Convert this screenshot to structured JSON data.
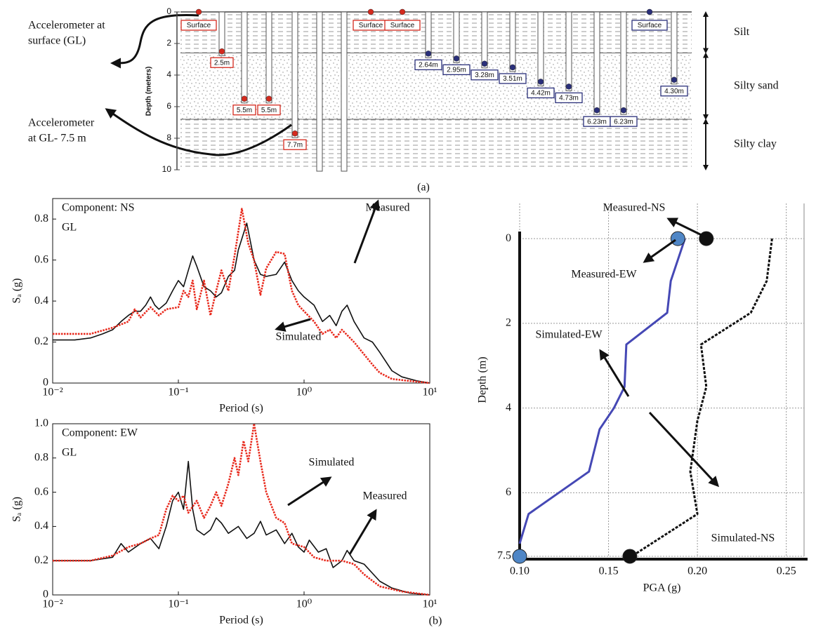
{
  "diagram": {
    "caption": "(a)",
    "depth_axis": {
      "label": "Depth (meters)",
      "lim": [
        0,
        10
      ],
      "ticks": [
        0,
        2,
        4,
        6,
        8,
        10
      ]
    },
    "layers": [
      {
        "name": "Silt",
        "top": 0,
        "bottom": 2.6
      },
      {
        "name": "Silty sand",
        "top": 2.6,
        "bottom": 6.8
      },
      {
        "name": "Silty clay",
        "top": 6.8,
        "bottom": 10
      }
    ],
    "sensors": [
      {
        "label": "Surface",
        "depth": 0,
        "color": "#d42a1e"
      },
      {
        "label": "2.5m",
        "depth": 2.5,
        "color": "#d42a1e"
      },
      {
        "label": "5.5m",
        "depth": 5.5,
        "color": "#d42a1e"
      },
      {
        "label": "5.5m",
        "depth": 5.5,
        "color": "#d42a1e"
      },
      {
        "label": "7.7m",
        "depth": 7.7,
        "color": "#d42a1e"
      },
      {
        "label": "Surface",
        "depth": 0,
        "color": "#d42a1e"
      },
      {
        "label": "Surface",
        "depth": 0,
        "color": "#d42a1e"
      },
      {
        "label": "2.64m",
        "depth": 2.64,
        "color": "#2a2f7a"
      },
      {
        "label": "2.95m",
        "depth": 2.95,
        "color": "#2a2f7a"
      },
      {
        "label": "3.28m",
        "depth": 3.28,
        "color": "#2a2f7a"
      },
      {
        "label": "3.51m",
        "depth": 3.51,
        "color": "#2a2f7a"
      },
      {
        "label": "4.42m",
        "depth": 4.42,
        "color": "#2a2f7a"
      },
      {
        "label": "4.73m",
        "depth": 4.73,
        "color": "#2a2f7a"
      },
      {
        "label": "6.23m",
        "depth": 6.23,
        "color": "#2a2f7a"
      },
      {
        "label": "6.23m",
        "depth": 6.23,
        "color": "#2a2f7a"
      },
      {
        "label": "Surface",
        "depth": 0,
        "color": "#2a2f7a"
      },
      {
        "label": "4.30m",
        "depth": 4.3,
        "color": "#2a2f7a"
      }
    ],
    "annotations": [
      {
        "lines": [
          "Accelerometer at",
          "surface (GL)"
        ]
      },
      {
        "lines": [
          "Accelerometer",
          "at GL- 7.5 m"
        ]
      }
    ]
  },
  "caption": "(b)",
  "chart_data": [
    {
      "type": "line",
      "log_x": true,
      "xlim": [
        0.01,
        10
      ],
      "ylim": [
        0,
        0.9
      ],
      "xticks": [
        {
          "value": 0.01,
          "label": "10⁻²"
        },
        {
          "value": 0.1,
          "label": "10⁻¹"
        },
        {
          "value": 1,
          "label": "10⁰"
        },
        {
          "value": 10,
          "label": "10¹"
        }
      ],
      "yticks": [
        0,
        0.2,
        0.4,
        0.6,
        0.8
      ],
      "xlabel": "Period (s)",
      "ylabel": "Sₐ (g)",
      "annotations": [
        "Component: NS",
        "GL"
      ],
      "series": [
        {
          "name": "Measured",
          "color": "#111111",
          "x": [
            0.01,
            0.015,
            0.02,
            0.025,
            0.03,
            0.035,
            0.04,
            0.045,
            0.05,
            0.055,
            0.06,
            0.065,
            0.07,
            0.08,
            0.09,
            0.1,
            0.11,
            0.12,
            0.13,
            0.14,
            0.16,
            0.18,
            0.2,
            0.22,
            0.25,
            0.28,
            0.3,
            0.35,
            0.4,
            0.45,
            0.5,
            0.6,
            0.7,
            0.8,
            0.9,
            1,
            1.2,
            1.4,
            1.6,
            1.8,
            2,
            2.2,
            2.5,
            3,
            3.5,
            4,
            5,
            6,
            8,
            10
          ],
          "values": [
            0.21,
            0.21,
            0.22,
            0.24,
            0.26,
            0.3,
            0.33,
            0.35,
            0.35,
            0.38,
            0.42,
            0.38,
            0.36,
            0.39,
            0.45,
            0.5,
            0.47,
            0.55,
            0.62,
            0.57,
            0.47,
            0.45,
            0.42,
            0.44,
            0.52,
            0.55,
            0.65,
            0.78,
            0.6,
            0.53,
            0.52,
            0.53,
            0.59,
            0.5,
            0.45,
            0.42,
            0.38,
            0.3,
            0.33,
            0.28,
            0.35,
            0.38,
            0.3,
            0.22,
            0.2,
            0.15,
            0.06,
            0.03,
            0.01,
            0
          ]
        },
        {
          "name": "Simulated",
          "color": "#e8291c",
          "dash": "dotted",
          "x": [
            0.01,
            0.02,
            0.03,
            0.04,
            0.045,
            0.05,
            0.06,
            0.07,
            0.08,
            0.1,
            0.11,
            0.12,
            0.13,
            0.14,
            0.16,
            0.18,
            0.2,
            0.22,
            0.25,
            0.28,
            0.32,
            0.36,
            0.4,
            0.45,
            0.5,
            0.6,
            0.7,
            0.8,
            0.9,
            1,
            1.2,
            1.4,
            1.6,
            1.8,
            2,
            2.5,
            3,
            3.5,
            4,
            5,
            7,
            10
          ],
          "values": [
            0.24,
            0.24,
            0.27,
            0.3,
            0.36,
            0.32,
            0.37,
            0.33,
            0.36,
            0.37,
            0.45,
            0.42,
            0.5,
            0.36,
            0.5,
            0.33,
            0.45,
            0.55,
            0.45,
            0.62,
            0.85,
            0.68,
            0.6,
            0.43,
            0.56,
            0.64,
            0.63,
            0.45,
            0.38,
            0.35,
            0.3,
            0.24,
            0.26,
            0.22,
            0.26,
            0.2,
            0.14,
            0.09,
            0.05,
            0.02,
            0.01,
            0
          ]
        }
      ]
    },
    {
      "type": "line",
      "log_x": true,
      "xlim": [
        0.01,
        10
      ],
      "ylim": [
        0,
        1
      ],
      "xticks": [
        {
          "value": 0.01,
          "label": "10⁻²"
        },
        {
          "value": 0.1,
          "label": "10⁻¹"
        },
        {
          "value": 1,
          "label": "10⁰"
        },
        {
          "value": 10,
          "label": "10¹"
        }
      ],
      "yticks": [
        0,
        0.2,
        0.4,
        0.6,
        0.8,
        {
          "value": 1,
          "label": "1.0"
        }
      ],
      "xlabel": "Period (s)",
      "ylabel": "Sₐ (g)",
      "annotations": [
        "Component: EW",
        "GL"
      ],
      "series": [
        {
          "name": "Measured",
          "color": "#111111",
          "x": [
            0.01,
            0.02,
            0.03,
            0.035,
            0.04,
            0.05,
            0.06,
            0.07,
            0.08,
            0.09,
            0.1,
            0.11,
            0.12,
            0.13,
            0.14,
            0.16,
            0.18,
            0.2,
            0.22,
            0.25,
            0.3,
            0.35,
            0.4,
            0.45,
            0.5,
            0.6,
            0.7,
            0.8,
            0.9,
            1,
            1.1,
            1.3,
            1.5,
            1.7,
            2,
            2.2,
            2.5,
            3,
            4,
            5,
            7,
            10
          ],
          "values": [
            0.2,
            0.2,
            0.22,
            0.3,
            0.25,
            0.3,
            0.33,
            0.27,
            0.4,
            0.55,
            0.6,
            0.5,
            0.78,
            0.5,
            0.38,
            0.35,
            0.38,
            0.45,
            0.42,
            0.36,
            0.4,
            0.33,
            0.36,
            0.43,
            0.35,
            0.38,
            0.3,
            0.36,
            0.28,
            0.25,
            0.32,
            0.25,
            0.27,
            0.16,
            0.2,
            0.26,
            0.2,
            0.18,
            0.08,
            0.04,
            0.01,
            0
          ]
        },
        {
          "name": "Simulated",
          "color": "#e8291c",
          "dash": "dotted",
          "x": [
            0.01,
            0.02,
            0.03,
            0.04,
            0.05,
            0.06,
            0.07,
            0.08,
            0.09,
            0.1,
            0.11,
            0.12,
            0.14,
            0.16,
            0.18,
            0.2,
            0.22,
            0.25,
            0.28,
            0.3,
            0.33,
            0.36,
            0.4,
            0.45,
            0.5,
            0.6,
            0.7,
            0.8,
            1,
            1.2,
            1.5,
            2,
            2.5,
            3,
            4,
            6,
            10
          ],
          "values": [
            0.2,
            0.2,
            0.23,
            0.28,
            0.3,
            0.33,
            0.35,
            0.5,
            0.58,
            0.55,
            0.58,
            0.48,
            0.55,
            0.45,
            0.52,
            0.6,
            0.52,
            0.65,
            0.8,
            0.7,
            0.9,
            0.78,
            1,
            0.78,
            0.6,
            0.45,
            0.42,
            0.3,
            0.28,
            0.22,
            0.2,
            0.2,
            0.18,
            0.12,
            0.05,
            0.02,
            0
          ]
        }
      ]
    },
    {
      "type": "line",
      "invert_y": true,
      "grid": true,
      "xlim": [
        0.1,
        0.26
      ],
      "ylim": [
        -0.83,
        7.5
      ],
      "xticks": [
        {
          "value": 0.1,
          "label": "0.10"
        },
        0.15,
        {
          "value": 0.2,
          "label": "0.20"
        },
        0.25
      ],
      "yticks": [
        0,
        2,
        4,
        6,
        7.5
      ],
      "xlabel": "PGA (g)",
      "ylabel": "Depth (m)",
      "series": [
        {
          "name": "Simulated-EW",
          "color": "#4548b5",
          "x": [
            0.193,
            0.189,
            0.185,
            0.183,
            0.16,
            0.159,
            0.153,
            0.145,
            0.139,
            0.105,
            0.1
          ],
          "values": [
            0,
            0.5,
            1,
            1.75,
            2.5,
            3.5,
            4,
            4.5,
            5.5,
            6.5,
            7.2
          ]
        },
        {
          "name": "Simulated-NS",
          "color": "#111111",
          "dash": "dashed",
          "x": [
            0.242,
            0.239,
            0.23,
            0.202,
            0.205,
            0.2,
            0.196,
            0.2,
            0.163
          ],
          "values": [
            0,
            1,
            1.75,
            2.5,
            3.5,
            4.3,
            5.5,
            6.5,
            7.5
          ]
        },
        {
          "name": "Measured-EW",
          "color": "#4f86c6",
          "marker": true,
          "x": [
            0.189,
            0.1
          ],
          "values": [
            0,
            7.5
          ]
        },
        {
          "name": "Measured-NS",
          "color": "#111111",
          "marker": true,
          "x": [
            0.205,
            0.162
          ],
          "values": [
            0,
            7.5
          ]
        }
      ]
    }
  ]
}
